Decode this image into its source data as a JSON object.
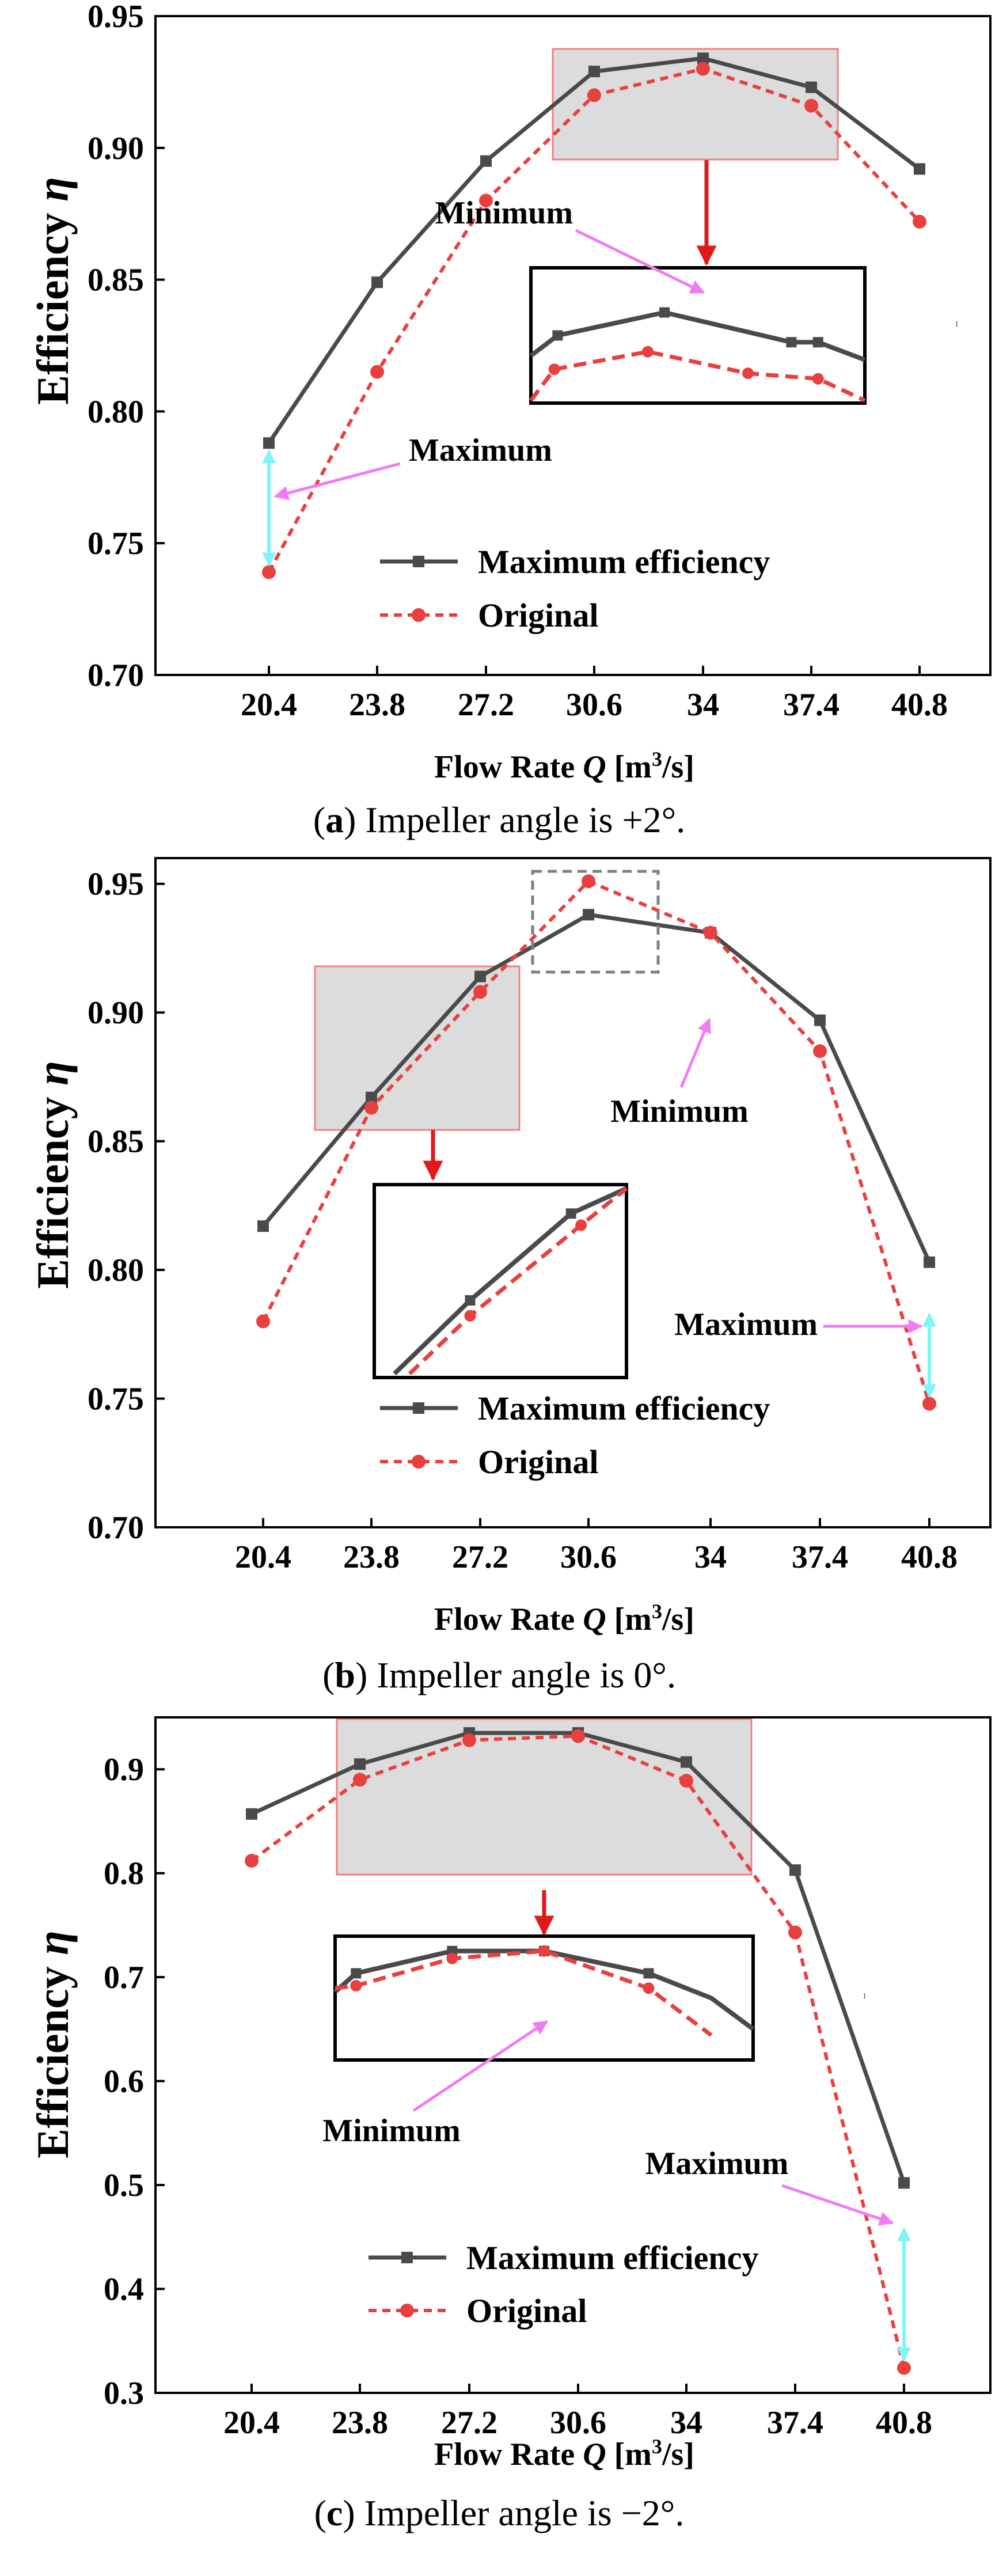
{
  "chart_data": [
    {
      "type": "line",
      "caption_letter": "a",
      "caption_text": " Impeller angle is +2°.",
      "x": [
        "20.4",
        "23.8",
        "27.2",
        "30.6",
        "34",
        "37.4",
        "40.8"
      ],
      "series": [
        {
          "name": "Maximum efficiency",
          "values": [
            0.788,
            0.849,
            0.895,
            0.929,
            0.934,
            0.923,
            0.892
          ],
          "color": "#4a4a4a"
        },
        {
          "name": "Original",
          "values": [
            0.739,
            0.815,
            0.88,
            0.92,
            0.93,
            0.916,
            0.872
          ],
          "color": "#e8403f"
        }
      ],
      "ylim": [
        0.7,
        0.95
      ],
      "yticks": [
        "0.70",
        "0.75",
        "0.80",
        "0.85",
        "0.90",
        "0.95"
      ],
      "xlabel": {
        "pre": "Flow Rate ",
        "var": "Q",
        "unit": " [m",
        "sup": "3",
        "post": "/s]"
      },
      "ylabel": {
        "pre": "Efficiency ",
        "var": "η"
      },
      "annotations": {
        "min": "Minimum",
        "max": "Maximum"
      },
      "small_mark": "1"
    },
    {
      "type": "line",
      "caption_letter": "b",
      "caption_text": " Impeller angle is 0°.",
      "x": [
        "20.4",
        "23.8",
        "27.2",
        "30.6",
        "34",
        "37.4",
        "40.8"
      ],
      "series": [
        {
          "name": "Maximum efficiency",
          "values": [
            0.817,
            0.867,
            0.914,
            0.938,
            0.931,
            0.897,
            0.803
          ],
          "color": "#4a4a4a"
        },
        {
          "name": "Original",
          "values": [
            0.78,
            0.863,
            0.908,
            0.951,
            0.931,
            0.885,
            0.748
          ],
          "color": "#e8403f"
        }
      ],
      "ylim": [
        0.7,
        0.96
      ],
      "yticks": [
        "0.70",
        "0.75",
        "0.80",
        "0.85",
        "0.90",
        "0.95"
      ],
      "xlabel": {
        "pre": "Flow Rate ",
        "var": "Q",
        "unit": " [m",
        "sup": "3",
        "post": "/s]"
      },
      "ylabel": {
        "pre": "Efficiency ",
        "var": "η"
      },
      "annotations": {
        "min": "Minimum",
        "max": "Maximum"
      }
    },
    {
      "type": "line",
      "caption_letter": "c",
      "caption_text": " Impeller angle is −2°.",
      "x": [
        "20.4",
        "23.8",
        "27.2",
        "30.6",
        "34",
        "37.4",
        "40.8"
      ],
      "series": [
        {
          "name": "Maximum efficiency",
          "values": [
            0.857,
            0.905,
            0.935,
            0.935,
            0.907,
            0.803,
            0.502
          ],
          "color": "#4a4a4a"
        },
        {
          "name": "Original",
          "values": [
            0.812,
            0.89,
            0.928,
            0.932,
            0.889,
            0.743,
            0.324
          ],
          "color": "#e8403f"
        }
      ],
      "ylim": [
        0.3,
        0.95
      ],
      "yticks": [
        "0.3",
        "0.4",
        "0.5",
        "0.6",
        "0.7",
        "0.8",
        "0.9"
      ],
      "xlabel": {
        "pre": "Flow Rate ",
        "var": "Q",
        "unit": " [m",
        "sup": "3",
        "post": "/s]"
      },
      "ylabel": {
        "pre": "Efficiency ",
        "var": "η"
      },
      "annotations": {
        "min": "Minimum",
        "max": "Maximum"
      },
      "small_mark": "1"
    }
  ]
}
